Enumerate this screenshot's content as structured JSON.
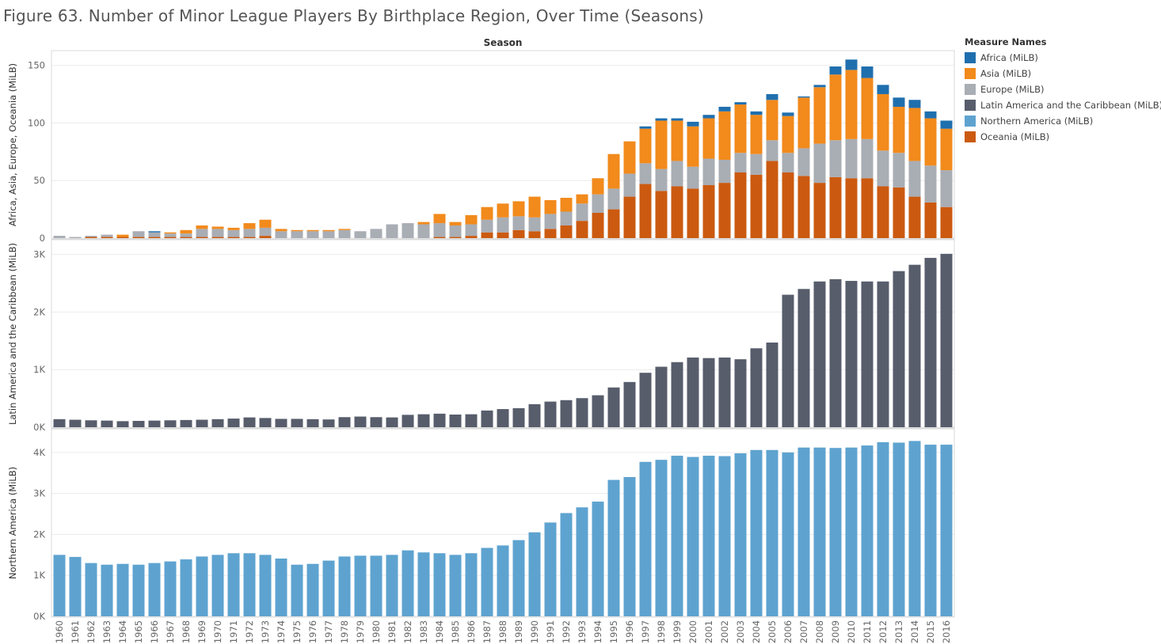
{
  "title": "Figure 63. Number of Minor League Players By Birthplace Region, Over Time (Seasons)",
  "column_header": "Season",
  "legend": {
    "title": "Measure Names",
    "items": [
      {
        "label": "Africa (MiLB)",
        "color": "#1f6fae"
      },
      {
        "label": "Asia (MiLB)",
        "color": "#f28a1c"
      },
      {
        "label": "Europe (MiLB)",
        "color": "#a9adb4"
      },
      {
        "label": "Latin America and the Caribbean (MiLB)",
        "color": "#575d6b"
      },
      {
        "label": "Northern America (MiLB)",
        "color": "#5ea3d0"
      },
      {
        "label": "Oceania (MiLB)",
        "color": "#cb5a10"
      }
    ]
  },
  "chart_data": [
    {
      "type": "bar",
      "stacked": true,
      "ylabel": "Africa, Asia, Europe, Oceania (MiLB)",
      "ylim": [
        0,
        160
      ],
      "yticks": [
        0,
        50,
        100,
        150
      ],
      "ytick_labels": [
        "0",
        "50",
        "100",
        "150"
      ],
      "categories": [
        "1960",
        "1961",
        "1962",
        "1963",
        "1964",
        "1965",
        "1966",
        "1967",
        "1968",
        "1969",
        "1970",
        "1971",
        "1972",
        "1973",
        "1974",
        "1975",
        "1976",
        "1977",
        "1978",
        "1979",
        "1980",
        "1981",
        "1982",
        "1983",
        "1984",
        "1985",
        "1986",
        "1987",
        "1988",
        "1989",
        "1990",
        "1991",
        "1992",
        "1993",
        "1994",
        "1995",
        "1996",
        "1997",
        "1998",
        "1999",
        "2000",
        "2001",
        "2002",
        "2003",
        "2004",
        "2005",
        "2006",
        "2007",
        "2008",
        "2009",
        "2010",
        "2011",
        "2012",
        "2013",
        "2014",
        "2015",
        "2016"
      ],
      "series": [
        {
          "name": "Oceania (MiLB)",
          "color": "#cb5a10",
          "values": [
            0,
            0,
            1,
            1,
            1,
            1,
            1,
            1,
            1,
            1,
            1,
            1,
            1,
            2,
            0,
            0,
            0,
            0,
            0,
            0,
            0,
            0,
            0,
            0,
            1,
            1,
            2,
            5,
            5,
            7,
            6,
            8,
            11,
            15,
            22,
            25,
            36,
            47,
            41,
            45,
            43,
            46,
            48,
            57,
            55,
            67,
            57,
            54,
            48,
            53,
            52,
            52,
            45,
            44,
            36,
            31,
            27
          ]
        },
        {
          "name": "Europe (MiLB)",
          "color": "#a9adb4",
          "values": [
            2,
            1,
            1,
            2,
            0,
            5,
            4,
            3,
            3,
            7,
            7,
            6,
            7,
            7,
            6,
            6,
            6,
            6,
            7,
            6,
            8,
            12,
            13,
            12,
            12,
            10,
            10,
            11,
            13,
            12,
            12,
            13,
            12,
            15,
            16,
            18,
            20,
            18,
            19,
            22,
            19,
            23,
            20,
            17,
            18,
            18,
            17,
            24,
            34,
            32,
            34,
            34,
            31,
            30,
            31,
            32,
            32
          ]
        },
        {
          "name": "Asia (MiLB)",
          "color": "#f28a1c",
          "values": [
            0,
            0,
            0,
            0,
            2,
            0,
            0,
            1,
            3,
            3,
            2,
            2,
            5,
            7,
            2,
            1,
            1,
            1,
            1,
            0,
            0,
            0,
            0,
            2,
            8,
            3,
            8,
            11,
            12,
            13,
            18,
            12,
            12,
            8,
            14,
            30,
            28,
            30,
            42,
            35,
            35,
            35,
            42,
            42,
            34,
            35,
            32,
            44,
            49,
            57,
            60,
            53,
            49,
            40,
            46,
            41,
            36
          ]
        },
        {
          "name": "Africa (MiLB)",
          "color": "#1f6fae",
          "values": [
            0,
            0,
            0,
            0,
            0,
            0,
            1,
            0,
            0,
            0,
            0,
            0,
            0,
            0,
            0,
            0,
            0,
            0,
            0,
            0,
            0,
            0,
            0,
            0,
            0,
            0,
            0,
            0,
            0,
            0,
            0,
            0,
            0,
            0,
            0,
            0,
            0,
            2,
            2,
            2,
            4,
            3,
            4,
            2,
            3,
            5,
            3,
            1,
            2,
            7,
            9,
            10,
            8,
            8,
            7,
            6,
            7
          ]
        }
      ]
    },
    {
      "type": "bar",
      "ylabel": "Latin America and the Caribbean (MiLB)",
      "ylim": [
        0,
        3200
      ],
      "yticks": [
        0,
        1000,
        2000,
        3000
      ],
      "ytick_labels": [
        "0K",
        "1K",
        "2K",
        "3K"
      ],
      "categories": [
        "1960",
        "1961",
        "1962",
        "1963",
        "1964",
        "1965",
        "1966",
        "1967",
        "1968",
        "1969",
        "1970",
        "1971",
        "1972",
        "1973",
        "1974",
        "1975",
        "1976",
        "1977",
        "1978",
        "1979",
        "1980",
        "1981",
        "1982",
        "1983",
        "1984",
        "1985",
        "1986",
        "1987",
        "1988",
        "1989",
        "1990",
        "1991",
        "1992",
        "1993",
        "1994",
        "1995",
        "1996",
        "1997",
        "1998",
        "1999",
        "2000",
        "2001",
        "2002",
        "2003",
        "2004",
        "2005",
        "2006",
        "2007",
        "2008",
        "2009",
        "2010",
        "2011",
        "2012",
        "2013",
        "2014",
        "2015",
        "2016"
      ],
      "series": [
        {
          "name": "Latin America and the Caribbean (MiLB)",
          "color": "#575d6b",
          "values": [
            140,
            130,
            120,
            115,
            105,
            110,
            115,
            120,
            125,
            130,
            140,
            150,
            170,
            160,
            145,
            145,
            140,
            135,
            175,
            185,
            175,
            170,
            215,
            225,
            235,
            220,
            225,
            290,
            315,
            330,
            400,
            445,
            470,
            505,
            555,
            690,
            785,
            945,
            1050,
            1130,
            1210,
            1200,
            1210,
            1180,
            1370,
            1470,
            2300,
            2400,
            2530,
            2570,
            2540,
            2530,
            2530,
            2710,
            2820,
            2940,
            3010
          ]
        }
      ]
    },
    {
      "type": "bar",
      "ylabel": "Northern America (MiLB)",
      "ylim": [
        0,
        4500
      ],
      "yticks": [
        0,
        1000,
        2000,
        3000,
        4000
      ],
      "ytick_labels": [
        "0K",
        "1K",
        "2K",
        "3K",
        "4K"
      ],
      "categories": [
        "1960",
        "1961",
        "1962",
        "1963",
        "1964",
        "1965",
        "1966",
        "1967",
        "1968",
        "1969",
        "1970",
        "1971",
        "1972",
        "1973",
        "1974",
        "1975",
        "1976",
        "1977",
        "1978",
        "1979",
        "1980",
        "1981",
        "1982",
        "1983",
        "1984",
        "1985",
        "1986",
        "1987",
        "1988",
        "1989",
        "1990",
        "1991",
        "1992",
        "1993",
        "1994",
        "1995",
        "1996",
        "1997",
        "1998",
        "1999",
        "2000",
        "2001",
        "2002",
        "2003",
        "2004",
        "2005",
        "2006",
        "2007",
        "2008",
        "2009",
        "2010",
        "2011",
        "2012",
        "2013",
        "2014",
        "2015",
        "2016"
      ],
      "series": [
        {
          "name": "Northern America (MiLB)",
          "color": "#5ea3d0",
          "values": [
            1500,
            1450,
            1300,
            1260,
            1280,
            1260,
            1300,
            1340,
            1390,
            1460,
            1500,
            1540,
            1540,
            1500,
            1410,
            1260,
            1280,
            1360,
            1460,
            1480,
            1480,
            1500,
            1610,
            1560,
            1540,
            1500,
            1540,
            1670,
            1730,
            1860,
            2050,
            2290,
            2520,
            2660,
            2800,
            3330,
            3400,
            3770,
            3820,
            3920,
            3890,
            3920,
            3910,
            3980,
            4060,
            4060,
            4000,
            4120,
            4120,
            4110,
            4120,
            4170,
            4250,
            4240,
            4280,
            4190,
            4190
          ]
        }
      ]
    }
  ]
}
